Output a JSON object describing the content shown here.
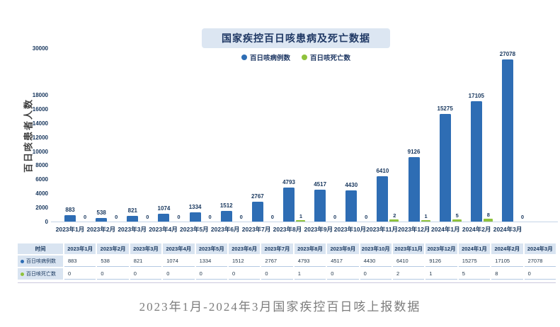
{
  "page": {
    "caption": "2023年1月-2024年3月国家疾控百日咳上报数据"
  },
  "chart_data": {
    "type": "bar",
    "title": "国家疾控百日咳患病及死亡数据",
    "ylabel": "百日咳患者人数",
    "xlabel": "",
    "grid": false,
    "legend_position": "top",
    "ylim": [
      0,
      30000
    ],
    "y_ticks": [
      0,
      2000,
      4000,
      6000,
      8000,
      10000,
      12000,
      14000,
      16000,
      18000,
      30000
    ],
    "axis_break": {
      "note": "tick labels jump from 18000 to 30000; upper segment compressed"
    },
    "categories": [
      "2023年1月",
      "2023年2月",
      "2023年3月",
      "2023年4月",
      "2023年5月",
      "2023年6月",
      "2023年7月",
      "2023年8月",
      "2023年9月",
      "2023年10月",
      "2023年11月",
      "2023年12月",
      "2024年1月",
      "2024年2月",
      "2024年3月"
    ],
    "series": [
      {
        "name": "百日咳病例数",
        "color": "#2e6db4",
        "values": [
          883,
          538,
          821,
          1074,
          1334,
          1512,
          2767,
          4793,
          4517,
          4430,
          6410,
          9126,
          15275,
          17105,
          27078
        ]
      },
      {
        "name": "百日咳死亡数",
        "color": "#8fc23c",
        "values": [
          0,
          0,
          0,
          0,
          0,
          0,
          0,
          1,
          0,
          0,
          2,
          1,
          5,
          8,
          0
        ]
      }
    ]
  },
  "table": {
    "corner_label": "时间",
    "columns": [
      "2023年1月",
      "2023年2月",
      "2023年3月",
      "2023年4月",
      "2023年5月",
      "2023年6月",
      "2023年7月",
      "2023年8月",
      "2023年9月",
      "2023年10月",
      "2023年11月",
      "2023年12月",
      "2024年1月",
      "2024年2月",
      "2024年3月"
    ],
    "rows": [
      {
        "label": "百日咳病例数",
        "dot_color": "#2e6db4",
        "values": [
          "883",
          "538",
          "821",
          "1074",
          "1334",
          "1512",
          "2767",
          "4793",
          "4517",
          "4430",
          "6410",
          "9126",
          "15275",
          "17105",
          "27078"
        ]
      },
      {
        "label": "百日咳死亡数",
        "dot_color": "#8fc23c",
        "values": [
          "0",
          "0",
          "0",
          "0",
          "0",
          "0",
          "0",
          "1",
          "0",
          "0",
          "2",
          "1",
          "5",
          "8",
          "0"
        ]
      }
    ]
  },
  "colors": {
    "cases_bar": "#2e6db4",
    "deaths_bar": "#8fc23c",
    "title_box_bg": "#dce6f2",
    "navy_text": "#17365d",
    "axis_line": "#c4d4e6",
    "table_cell_bg": "#d9e4f1",
    "table_border": "#b4c9e2",
    "caption_text": "#7c7c7c"
  }
}
